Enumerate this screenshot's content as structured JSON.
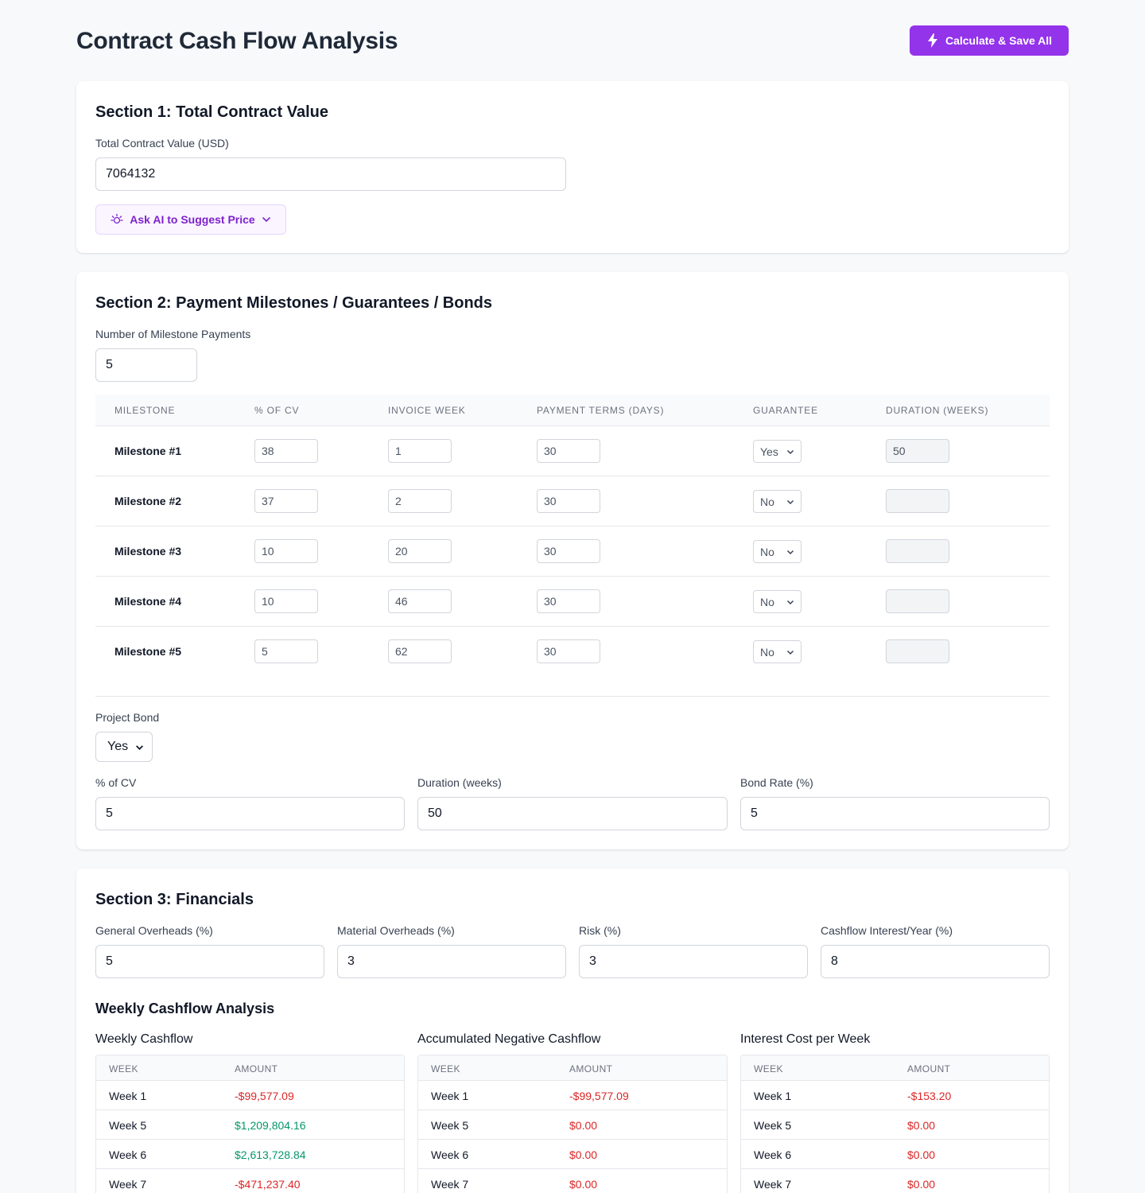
{
  "header": {
    "title": "Contract Cash Flow Analysis",
    "calc_button": "Calculate & Save All"
  },
  "section1": {
    "title": "Section 1: Total Contract Value",
    "tcv_label": "Total Contract Value (USD)",
    "tcv_value": "7064132",
    "ai_button": "Ask AI to Suggest Price"
  },
  "section2": {
    "title": "Section 2: Payment Milestones / Guarantees / Bonds",
    "num_label": "Number of Milestone Payments",
    "num_value": "5",
    "columns": [
      "MILESTONE",
      "% OF CV",
      "INVOICE WEEK",
      "PAYMENT TERMS (DAYS)",
      "GUARANTEE",
      "DURATION (WEEKS)"
    ],
    "milestones": [
      {
        "name": "Milestone #1",
        "pct": "38",
        "week": "1",
        "terms": "30",
        "guarantee": "Yes",
        "duration": "50"
      },
      {
        "name": "Milestone #2",
        "pct": "37",
        "week": "2",
        "terms": "30",
        "guarantee": "No",
        "duration": ""
      },
      {
        "name": "Milestone #3",
        "pct": "10",
        "week": "20",
        "terms": "30",
        "guarantee": "No",
        "duration": ""
      },
      {
        "name": "Milestone #4",
        "pct": "10",
        "week": "46",
        "terms": "30",
        "guarantee": "No",
        "duration": ""
      },
      {
        "name": "Milestone #5",
        "pct": "5",
        "week": "62",
        "terms": "30",
        "guarantee": "No",
        "duration": ""
      }
    ],
    "bond_label": "Project Bond",
    "bond_value": "Yes",
    "bond_pct_label": "% of CV",
    "bond_pct_value": "5",
    "bond_duration_label": "Duration (weeks)",
    "bond_duration_value": "50",
    "bond_rate_label": "Bond Rate (%)",
    "bond_rate_value": "5"
  },
  "section3": {
    "title": "Section 3: Financials",
    "general_label": "General Overheads (%)",
    "general_value": "5",
    "material_label": "Material Overheads (%)",
    "material_value": "3",
    "risk_label": "Risk (%)",
    "risk_value": "3",
    "interest_label": "Cashflow Interest/Year (%)",
    "interest_value": "8",
    "analysis_title": "Weekly Cashflow Analysis",
    "tables": [
      {
        "title": "Weekly Cashflow",
        "col_week": "WEEK",
        "col_amount": "AMOUNT",
        "rows": [
          {
            "week": "Week 1",
            "amount": "-$99,577.09",
            "sign": "neg"
          },
          {
            "week": "Week 5",
            "amount": "$1,209,804.16",
            "sign": "pos"
          },
          {
            "week": "Week 6",
            "amount": "$2,613,728.84",
            "sign": "pos"
          },
          {
            "week": "Week 7",
            "amount": "-$471,237.40",
            "sign": "neg"
          }
        ]
      },
      {
        "title": "Accumulated Negative Cashflow",
        "col_week": "WEEK",
        "col_amount": "AMOUNT",
        "rows": [
          {
            "week": "Week 1",
            "amount": "-$99,577.09",
            "sign": "neg"
          },
          {
            "week": "Week 5",
            "amount": "$0.00",
            "sign": "neg"
          },
          {
            "week": "Week 6",
            "amount": "$0.00",
            "sign": "neg"
          },
          {
            "week": "Week 7",
            "amount": "$0.00",
            "sign": "neg"
          }
        ]
      },
      {
        "title": "Interest Cost per Week",
        "col_week": "WEEK",
        "col_amount": "AMOUNT",
        "rows": [
          {
            "week": "Week 1",
            "amount": "-$153.20",
            "sign": "neg"
          },
          {
            "week": "Week 5",
            "amount": "$0.00",
            "sign": "neg"
          },
          {
            "week": "Week 6",
            "amount": "$0.00",
            "sign": "neg"
          },
          {
            "week": "Week 7",
            "amount": "$0.00",
            "sign": "neg"
          }
        ]
      }
    ]
  },
  "icons": {
    "calc": "lightning-icon",
    "ai": "lightbulb-icon",
    "ai_dropdown": "chevron-down-icon"
  },
  "colors": {
    "accent": "#9333ea",
    "negative": "#dc2626",
    "positive": "#059669"
  }
}
